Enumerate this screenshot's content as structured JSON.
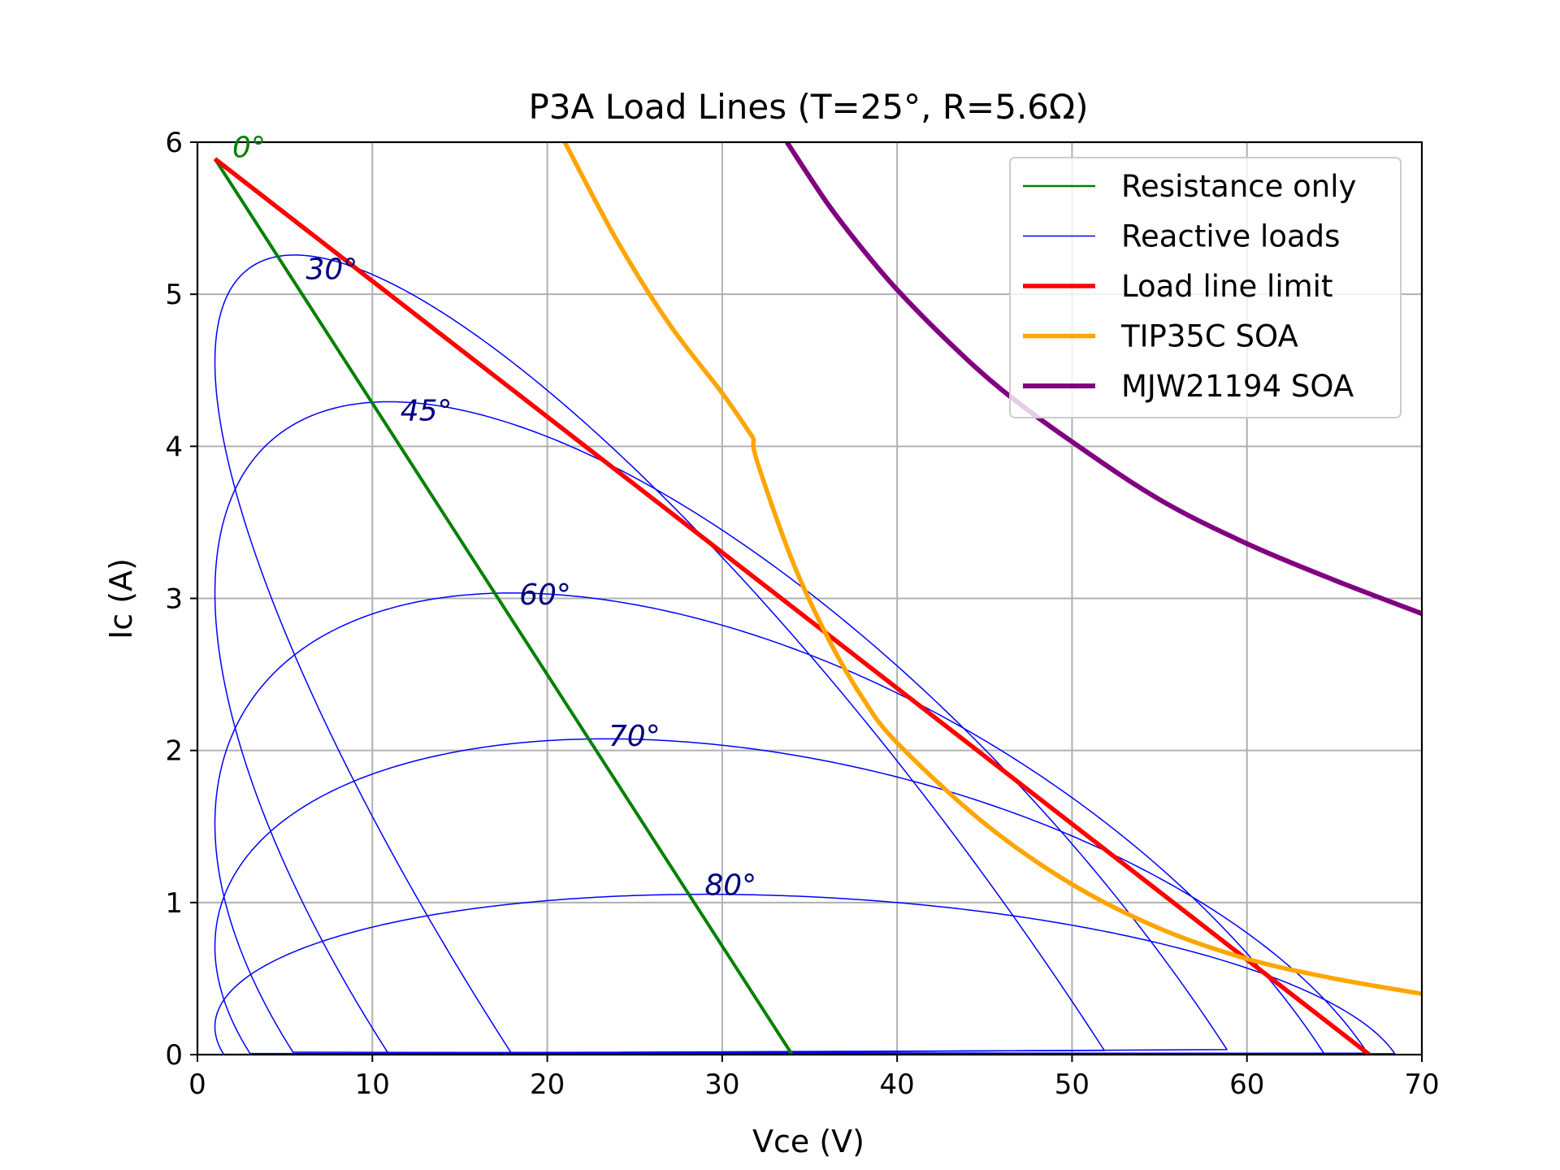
{
  "chart_data": {
    "type": "line",
    "title": "P3A Load Lines (T=25°, R=5.6Ω)",
    "xlabel": "Vce (V)",
    "ylabel": "Ic (A)",
    "xlim": [
      0,
      70
    ],
    "ylim": [
      0,
      6
    ],
    "xticks": [
      "0",
      "10",
      "20",
      "30",
      "40",
      "50",
      "60",
      "70"
    ],
    "yticks": [
      "0",
      "1",
      "2",
      "3",
      "4",
      "5",
      "6"
    ],
    "grid": true,
    "legend_position": "upper right",
    "supply_voltage": 34,
    "resistance": 5.6,
    "vce_offset": 1,
    "series": [
      {
        "name": "Resistance only",
        "color": "#008000",
        "x": [
          1,
          34
        ],
        "y": [
          5.89,
          0
        ]
      },
      {
        "name": "Reactive loads",
        "color": "#0000ff",
        "angles_deg": [
          30,
          45,
          60,
          70,
          80
        ]
      },
      {
        "name": "Load line limit",
        "color": "#ff0000",
        "x": [
          1,
          67
        ],
        "y": [
          5.89,
          0
        ]
      },
      {
        "name": "TIP35C SOA",
        "color": "#ffa500",
        "x": [
          21,
          24,
          27,
          30,
          31.8,
          32,
          34,
          36,
          38,
          40,
          45,
          50,
          55,
          60,
          65,
          70
        ],
        "y": [
          6,
          5.35,
          4.8,
          4.35,
          4.05,
          3.9,
          3.25,
          2.75,
          2.35,
          2.05,
          1.52,
          1.12,
          0.83,
          0.63,
          0.5,
          0.4
        ]
      },
      {
        "name": "MJW21194 SOA",
        "color": "#800080",
        "x": [
          33.7,
          36,
          38,
          40,
          43,
          46,
          50,
          55,
          60,
          65,
          70
        ],
        "y": [
          6,
          5.6,
          5.3,
          5.03,
          4.68,
          4.37,
          4.03,
          3.65,
          3.36,
          3.12,
          2.9
        ]
      }
    ],
    "annotations": [
      {
        "text": "0°",
        "x": 2,
        "y": 5.9,
        "color": "#008000"
      },
      {
        "text": "30°",
        "x": 6.2,
        "y": 5.1,
        "color": "#000080"
      },
      {
        "text": "45°",
        "x": 11.6,
        "y": 4.17,
        "color": "#000080"
      },
      {
        "text": "60°",
        "x": 18.4,
        "y": 2.96,
        "color": "#000080"
      },
      {
        "text": "70°",
        "x": 23.5,
        "y": 2.03,
        "color": "#000080"
      },
      {
        "text": "80°",
        "x": 29,
        "y": 1.05,
        "color": "#000080"
      }
    ]
  }
}
